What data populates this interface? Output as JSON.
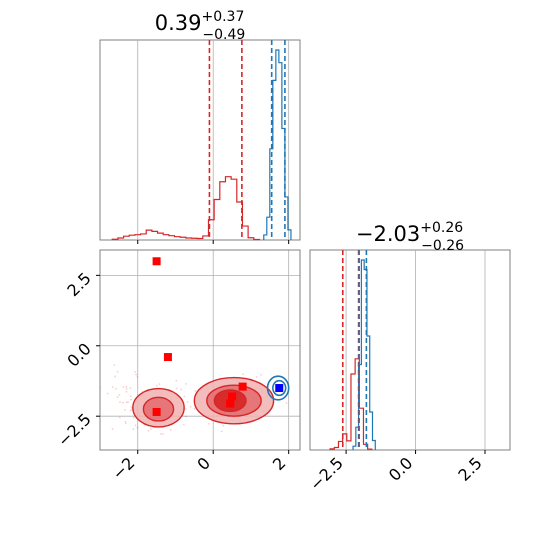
{
  "colors": {
    "red": "#d62728",
    "blue": "#1f77b4",
    "red_fill_light": "#f1b2b3",
    "red_fill_dark": "#d62728",
    "grid": "#b0b0b0",
    "marker_red": "#ff0000",
    "marker_blue": "#0000ff"
  },
  "titles": {
    "p0_main": "0.39",
    "p0_sup": "+0.37",
    "p0_sub": "−0.49",
    "p1_main": "−2.03",
    "p1_sup": "+0.26",
    "p1_sub": "−0.26"
  },
  "chart_data": {
    "type": "corner",
    "grid": true,
    "parameters": 2,
    "panels": [
      {
        "name": "param0-histogram",
        "type": "histogram",
        "xlim": [
          -3.0,
          2.3
        ],
        "series": [
          {
            "name": "red",
            "color": "#d62728",
            "bins_x": [
              -2.6,
              -2.45,
              -2.3,
              -2.15,
              -2.0,
              -1.85,
              -1.7,
              -1.55,
              -1.4,
              -1.25,
              -1.1,
              -0.95,
              -0.8,
              -0.65,
              -0.5,
              -0.35,
              -0.2,
              -0.05,
              0.1,
              0.25,
              0.4,
              0.55,
              0.7,
              0.85,
              1.0,
              1.15
            ],
            "counts": [
              0.3,
              0.8,
              1.5,
              1.9,
              2.1,
              2.4,
              3.9,
              3.4,
              2.7,
              2.1,
              1.7,
              1.3,
              1.1,
              0.8,
              0.7,
              0.6,
              1.6,
              8,
              16,
              23,
              25,
              24,
              15,
              5.5,
              0.9,
              0.2
            ],
            "dashed_lines": [
              -0.1,
              0.76
            ]
          },
          {
            "name": "blue",
            "color": "#1f77b4",
            "bins_x": [
              1.38,
              1.46,
              1.54,
              1.62,
              1.7,
              1.78,
              1.86,
              1.94,
              2.02
            ],
            "counts": [
              2,
              9,
              36,
              63,
              75,
              70,
              44,
              17,
              4
            ],
            "dashed_lines": [
              1.55,
              1.9
            ]
          }
        ],
        "title": "0.39^{+0.37}_{-0.49}"
      },
      {
        "name": "param1-histogram",
        "type": "histogram",
        "xlim": [
          -3.8,
          3.4
        ],
        "xticks": [
          -2.5,
          0.0,
          2.5
        ],
        "xtick_labels": [
          "−2.5",
          "0.0",
          "2.5"
        ],
        "series": [
          {
            "name": "red",
            "color": "#d62728",
            "bins_x": [
              -3.0,
              -2.85,
              -2.7,
              -2.55,
              -2.4,
              -2.25,
              -2.1,
              -1.95,
              -1.8,
              -1.65
            ],
            "counts": [
              0.6,
              1.3,
              4.5,
              8.5,
              4.8,
              40,
              48,
              22,
              3,
              0.5
            ],
            "dashed_lines": [
              -2.62,
              -2.05
            ]
          },
          {
            "name": "blue",
            "color": "#1f77b4",
            "bins_x": [
              -2.2,
              -2.1,
              -2.0,
              -1.9,
              -1.8,
              -1.7,
              -1.6,
              -1.5
            ],
            "counts": [
              2,
              12,
              45,
              100,
              95,
              60,
              20,
              5
            ],
            "dashed_lines": [
              -1.77,
              -2.03
            ]
          }
        ],
        "title": "−2.03^{+0.26}_{-0.26}"
      },
      {
        "name": "joint-2d",
        "type": "contour",
        "xlim": [
          -3.0,
          2.3
        ],
        "ylim": [
          -3.7,
          3.4
        ],
        "xticks": [
          -2,
          0,
          2
        ],
        "xtick_labels": [
          "−2",
          "0",
          "2"
        ],
        "yticks": [
          -2.5,
          0.0,
          2.5
        ],
        "ytick_labels": [
          "−2.5",
          "0.0",
          "2.5"
        ],
        "markers": [
          {
            "x": -1.5,
            "y": 3.0,
            "color": "#ff0000"
          },
          {
            "x": -1.2,
            "y": -0.4,
            "color": "#ff0000"
          },
          {
            "x": 0.78,
            "y": -1.45,
            "color": "#ff0000"
          },
          {
            "x": 0.5,
            "y": -1.8,
            "color": "#ff0000"
          },
          {
            "x": 0.45,
            "y": -2.05,
            "color": "#ff0000"
          },
          {
            "x": -1.5,
            "y": -2.35,
            "color": "#ff0000"
          },
          {
            "x": 1.75,
            "y": -1.5,
            "color": "#0000ff"
          }
        ],
        "red_blobs": [
          {
            "cx": 0.55,
            "cy": -1.95,
            "rx": 1.05,
            "ry": 0.82,
            "level": "outer"
          },
          {
            "cx": 0.55,
            "cy": -1.95,
            "rx": 0.72,
            "ry": 0.55,
            "level": "inner"
          },
          {
            "cx": 0.45,
            "cy": -1.95,
            "rx": 0.42,
            "ry": 0.38,
            "level": "core"
          },
          {
            "cx": -1.45,
            "cy": -2.2,
            "rx": 0.68,
            "ry": 0.68,
            "level": "outer"
          },
          {
            "cx": -1.45,
            "cy": -2.25,
            "rx": 0.4,
            "ry": 0.42,
            "level": "inner"
          }
        ],
        "blue_blobs": [
          {
            "cx": 1.72,
            "cy": -1.5,
            "rx": 0.28,
            "ry": 0.42
          },
          {
            "cx": 1.75,
            "cy": -1.5,
            "rx": 0.17,
            "ry": 0.26
          }
        ]
      }
    ]
  }
}
